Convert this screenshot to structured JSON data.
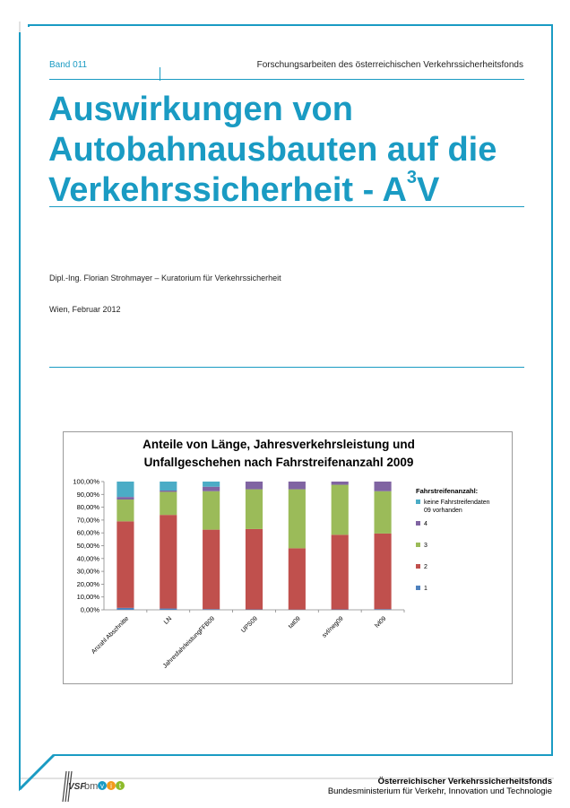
{
  "header": {
    "band": "Band 011",
    "series": "Forschungsarbeiten des österreichischen Verkehrssicherheitsfonds"
  },
  "title": {
    "line1": "Auswirkungen von",
    "line2": "Autobahnausbauten auf die",
    "line3_main": "Verkehrssicherheit - A",
    "line3_sup": "3",
    "line3_end": "V"
  },
  "author": "Dipl.-Ing. Florian Strohmayer – Kuratorium für Verkehrssicherheit",
  "date": "Wien, Februar 2012",
  "colors": {
    "accent": "#1a9bc3"
  },
  "chart_data": {
    "type": "bar",
    "stacked": true,
    "title_line1": "Anteile von Länge, Jahresverkehrsleistung und",
    "title_line2": "Unfallgeschehen nach Fahrstreifenanzahl 2009",
    "legend_title": "Fahrstreifenanzahl:",
    "categories": [
      "Anzahl Abschnitte",
      "LN",
      "JahresfahrleistungFFB09",
      "UPS09",
      "tat09",
      "svl/neg09",
      "lvl09"
    ],
    "ylim": [
      0,
      100
    ],
    "yticks": [
      "0,00%",
      "10,00%",
      "20,00%",
      "30,00%",
      "40,00%",
      "50,00%",
      "60,00%",
      "70,00%",
      "80,00%",
      "90,00%",
      "100,00%"
    ],
    "series": [
      {
        "name": "1",
        "color": "#4f81bd",
        "values": [
          1.5,
          1.0,
          0.5,
          0.3,
          0.2,
          0.3,
          0.5
        ]
      },
      {
        "name": "2",
        "color": "#c0504d",
        "values": [
          67.5,
          73.0,
          62.0,
          62.7,
          47.8,
          58.2,
          59.0
        ]
      },
      {
        "name": "3",
        "color": "#9bbb59",
        "values": [
          17.0,
          18.0,
          30.0,
          31.0,
          46.0,
          39.0,
          33.0
        ]
      },
      {
        "name": "4",
        "color": "#8064a2",
        "values": [
          2.0,
          1.0,
          3.5,
          6.0,
          6.0,
          2.5,
          7.5
        ]
      },
      {
        "name": "keine Fahrstreifendaten 09 vorhanden",
        "color": "#4bacc6",
        "values": [
          12.0,
          7.0,
          4.0,
          0.0,
          0.0,
          0.0,
          0.0
        ]
      }
    ],
    "legend_order": [
      4,
      3,
      2,
      1,
      0
    ],
    "legend_labels": {
      "keine_line1": "keine Fahrstreifendaten",
      "keine_line2": "09 vorhanden"
    }
  },
  "footer": {
    "line1": "Österreichischer Verkehrssicherheitsfonds",
    "line2": "Bundesministerium für Verkehr, Innovation und Technologie",
    "logo_vsf": "VSF",
    "logo_bm": "bm",
    "logo_v": "v",
    "logo_i": "i",
    "logo_t": "t"
  }
}
